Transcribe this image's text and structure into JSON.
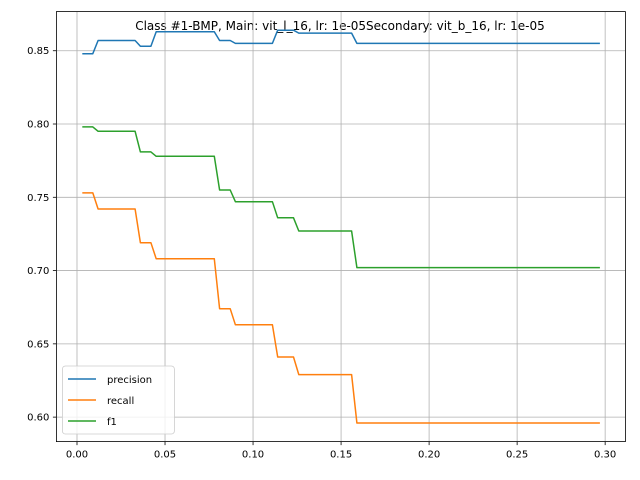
{
  "chart_data": {
    "type": "line",
    "title": "Class #1-BMP, Main: vit_l_16, lr: 1e-05Secondary: vit_b_16, lr: 1e-05",
    "xlabel": "",
    "ylabel": "",
    "xlim": [
      -0.0117,
      0.3115
    ],
    "ylim": [
      0.5833,
      0.8767
    ],
    "grid": true,
    "legend_position": "lower-left",
    "xticks": [
      0.0,
      0.05,
      0.1,
      0.15,
      0.2,
      0.25,
      0.3
    ],
    "xtick_labels": [
      "0.00",
      "0.05",
      "0.10",
      "0.15",
      "0.20",
      "0.25",
      "0.30"
    ],
    "yticks": [
      0.6,
      0.65,
      0.7,
      0.75,
      0.8,
      0.85
    ],
    "ytick_labels": [
      "0.60",
      "0.65",
      "0.70",
      "0.75",
      "0.80",
      "0.85"
    ],
    "series": [
      {
        "name": "precision",
        "color": "#1f77b4",
        "points": [
          [
            0.003,
            0.848
          ],
          [
            0.009,
            0.848
          ],
          [
            0.012,
            0.857
          ],
          [
            0.033,
            0.857
          ],
          [
            0.036,
            0.853
          ],
          [
            0.042,
            0.853
          ],
          [
            0.045,
            0.863
          ],
          [
            0.078,
            0.863
          ],
          [
            0.081,
            0.857
          ],
          [
            0.087,
            0.857
          ],
          [
            0.09,
            0.855
          ],
          [
            0.111,
            0.855
          ],
          [
            0.114,
            0.864
          ],
          [
            0.123,
            0.864
          ],
          [
            0.126,
            0.862
          ],
          [
            0.156,
            0.862
          ],
          [
            0.159,
            0.855
          ],
          [
            0.297,
            0.855
          ]
        ]
      },
      {
        "name": "recall",
        "color": "#ff7f0e",
        "points": [
          [
            0.003,
            0.753
          ],
          [
            0.009,
            0.753
          ],
          [
            0.012,
            0.742
          ],
          [
            0.033,
            0.742
          ],
          [
            0.036,
            0.719
          ],
          [
            0.042,
            0.719
          ],
          [
            0.045,
            0.708
          ],
          [
            0.078,
            0.708
          ],
          [
            0.081,
            0.674
          ],
          [
            0.087,
            0.674
          ],
          [
            0.09,
            0.663
          ],
          [
            0.111,
            0.663
          ],
          [
            0.114,
            0.641
          ],
          [
            0.123,
            0.641
          ],
          [
            0.126,
            0.629
          ],
          [
            0.156,
            0.629
          ],
          [
            0.159,
            0.596
          ],
          [
            0.297,
            0.596
          ]
        ]
      },
      {
        "name": "f1",
        "color": "#2ca02c",
        "points": [
          [
            0.003,
            0.798
          ],
          [
            0.009,
            0.798
          ],
          [
            0.012,
            0.795
          ],
          [
            0.033,
            0.795
          ],
          [
            0.036,
            0.781
          ],
          [
            0.042,
            0.781
          ],
          [
            0.045,
            0.778
          ],
          [
            0.078,
            0.778
          ],
          [
            0.081,
            0.755
          ],
          [
            0.087,
            0.755
          ],
          [
            0.09,
            0.747
          ],
          [
            0.111,
            0.747
          ],
          [
            0.114,
            0.736
          ],
          [
            0.123,
            0.736
          ],
          [
            0.126,
            0.727
          ],
          [
            0.156,
            0.727
          ],
          [
            0.159,
            0.702
          ],
          [
            0.297,
            0.702
          ]
        ]
      }
    ]
  }
}
